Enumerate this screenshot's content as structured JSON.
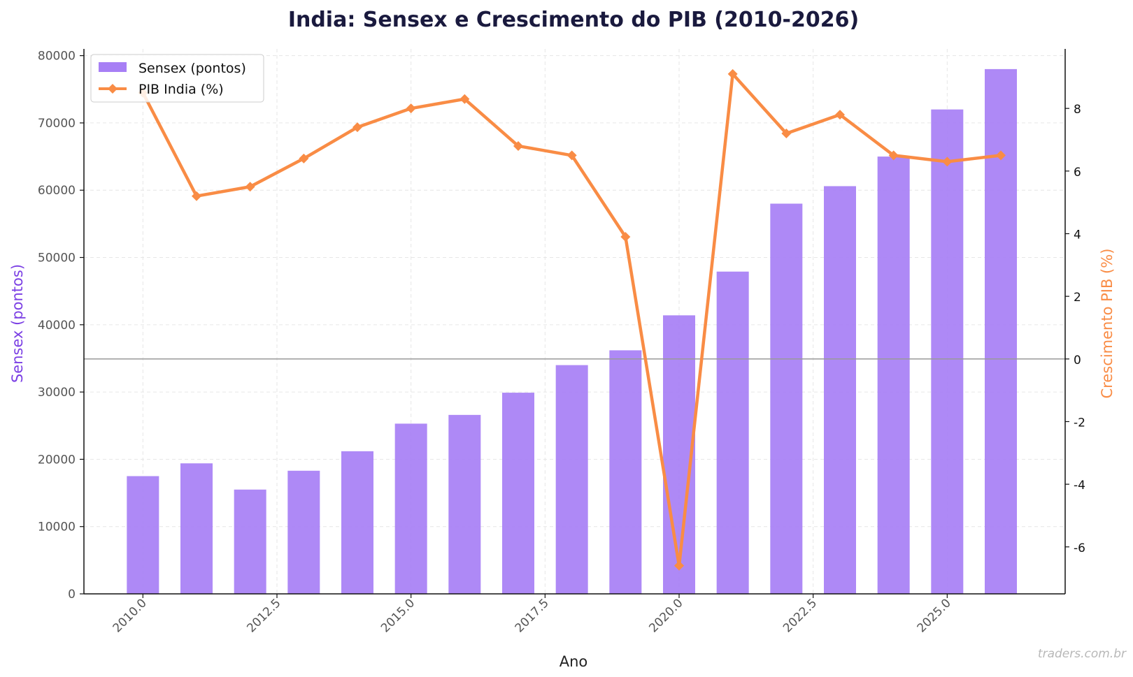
{
  "chart_data": {
    "type": "bar",
    "title": "India: Sensex e Crescimento do PIB (2010-2026)",
    "xlabel": "Ano",
    "ylabel": "Sensex (pontos)",
    "ylabel_right": "Crescimento PIB (%)",
    "x": [
      2010,
      2011,
      2012,
      2013,
      2014,
      2015,
      2016,
      2017,
      2018,
      2019,
      2020,
      2021,
      2022,
      2023,
      2024,
      2025,
      2026
    ],
    "xlim": [
      2008.9,
      2027.2
    ],
    "ylim": [
      0,
      81000
    ],
    "ylim_right": [
      -7.5,
      9.9
    ],
    "x_ticks": [
      2010.0,
      2012.5,
      2015.0,
      2017.5,
      2020.0,
      2022.5,
      2025.0
    ],
    "x_tick_labels": [
      "2010.0",
      "2012.5",
      "2015.0",
      "2017.5",
      "2020.0",
      "2022.5",
      "2025.0"
    ],
    "y_ticks": [
      0,
      10000,
      20000,
      30000,
      40000,
      50000,
      60000,
      70000,
      80000
    ],
    "y_tick_labels": [
      "0",
      "10000",
      "20000",
      "30000",
      "40000",
      "50000",
      "60000",
      "70000",
      "80000"
    ],
    "y_right_ticks": [
      -6,
      -4,
      -2,
      0,
      2,
      4,
      6,
      8
    ],
    "y_right_tick_labels": [
      "-6",
      "-4",
      "-2",
      "0",
      "2",
      "4",
      "6",
      "8"
    ],
    "grid": true,
    "zero_line_right_axis": 0,
    "legend_position": "top-left",
    "series": [
      {
        "name": "Sensex (pontos)",
        "type": "bar",
        "axis": "left",
        "color": "#a77ff5",
        "values": [
          17500,
          19400,
          15500,
          18300,
          21200,
          25300,
          26600,
          29900,
          34000,
          36200,
          41400,
          47900,
          58000,
          60600,
          65000,
          72000,
          78000
        ]
      },
      {
        "name": "PIB India (%)",
        "type": "line",
        "axis": "right",
        "color": "#f98c45",
        "marker": "diamond",
        "values": [
          8.5,
          5.2,
          5.5,
          6.4,
          7.4,
          8.0,
          8.3,
          6.8,
          6.5,
          3.9,
          -6.6,
          9.1,
          7.2,
          7.8,
          6.5,
          6.3,
          6.5
        ]
      }
    ]
  },
  "colors": {
    "title": "#1a1a3e",
    "left_axis_label": "#7b3fe4",
    "right_axis_label": "#f98c45",
    "tick_left": "#555555",
    "tick_right": "#111111",
    "zero_line": "#999999",
    "grid": "#e6e6e6",
    "watermark": "#b8b8b8"
  },
  "watermark": "traders.com.br"
}
